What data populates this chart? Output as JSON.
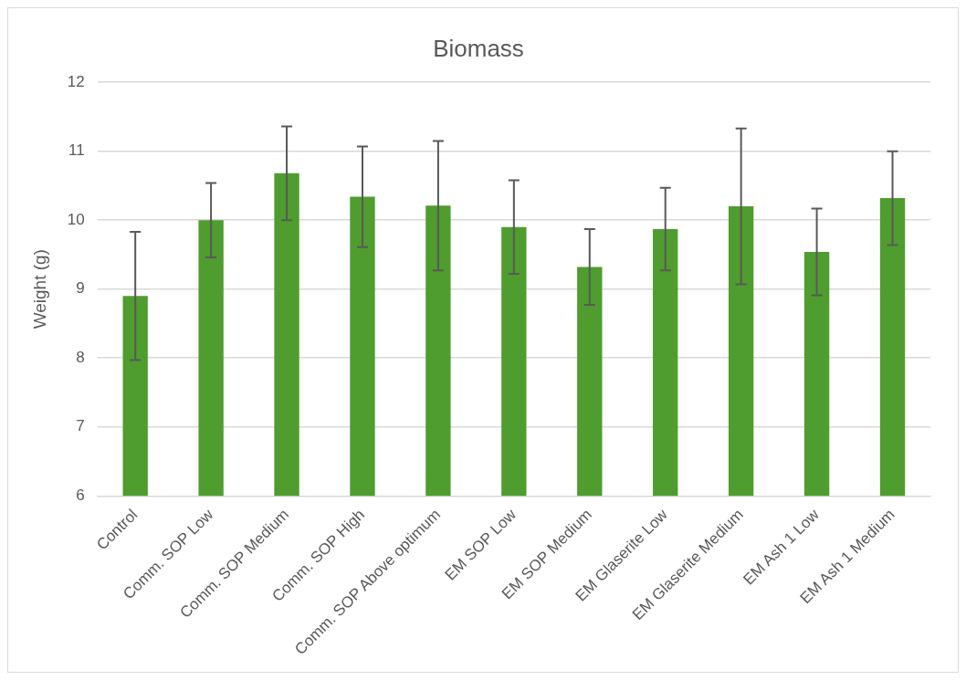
{
  "chart_data": {
    "type": "bar",
    "title": "Biomass",
    "ylabel": "Weight (g)",
    "categories": [
      "Control",
      "Comm. SOP Low",
      "Comm. SOP Medium",
      "Comm. SOP High",
      "Comm. SOP Above optimum",
      "EM SOP Low",
      "EM SOP Medium",
      "EM Glaserite Low",
      "EM Glaserite Medium",
      "EM Ash 1 Low",
      "EM Ash 1 Medium"
    ],
    "values": [
      8.9,
      10.0,
      10.68,
      10.34,
      10.21,
      9.9,
      9.32,
      9.87,
      10.2,
      9.54,
      10.32
    ],
    "errors": [
      0.93,
      0.54,
      0.68,
      0.73,
      0.94,
      0.68,
      0.55,
      0.6,
      1.13,
      0.63,
      0.68
    ],
    "color": "#4f9d2f",
    "ylim": [
      6,
      12
    ],
    "yticks": [
      6,
      7,
      8,
      9,
      10,
      11,
      12
    ],
    "grid": "y"
  }
}
